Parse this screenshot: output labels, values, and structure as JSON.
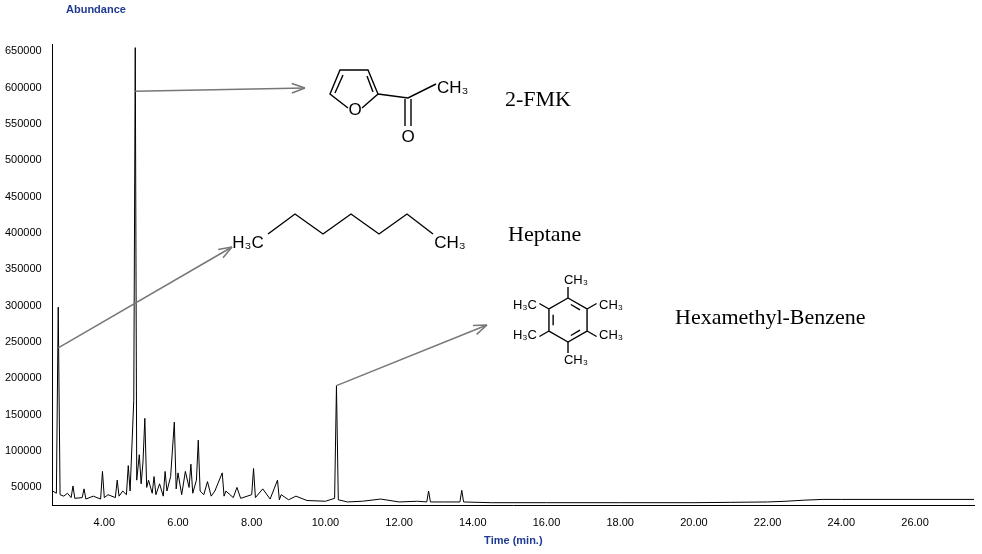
{
  "chart_data": {
    "type": "line",
    "xlabel": "Time (min.)",
    "ylabel": "Abundance",
    "color": "#000000",
    "grid": false,
    "xlim": [
      2.6,
      27.6
    ],
    "ylim": [
      25000,
      660000
    ],
    "xticks": [
      {
        "value": 4,
        "label": "4.00"
      },
      {
        "value": 6,
        "label": "6.00"
      },
      {
        "value": 8,
        "label": "8.00"
      },
      {
        "value": 10,
        "label": "10.00"
      },
      {
        "value": 12,
        "label": "12.00"
      },
      {
        "value": 14,
        "label": "14.00"
      },
      {
        "value": 16,
        "label": "16.00"
      },
      {
        "value": 18,
        "label": "18.00"
      },
      {
        "value": 20,
        "label": "20.00"
      },
      {
        "value": 22,
        "label": "22.00"
      },
      {
        "value": 24,
        "label": "24.00"
      },
      {
        "value": 26,
        "label": "26.00"
      }
    ],
    "yticks": [
      50000,
      100000,
      150000,
      200000,
      250000,
      300000,
      350000,
      400000,
      450000,
      500000,
      550000,
      600000,
      650000
    ],
    "x": [
      2.6,
      2.7,
      2.75,
      2.8,
      2.9,
      3.0,
      3.1,
      3.15,
      3.2,
      3.4,
      3.45,
      3.5,
      3.7,
      3.9,
      3.95,
      4.0,
      4.1,
      4.3,
      4.35,
      4.4,
      4.5,
      4.6,
      4.65,
      4.7,
      4.8,
      4.84,
      4.88,
      4.95,
      5.0,
      5.05,
      5.1,
      5.15,
      5.2,
      5.3,
      5.35,
      5.4,
      5.5,
      5.6,
      5.65,
      5.7,
      5.8,
      5.9,
      5.95,
      6.0,
      6.1,
      6.2,
      6.3,
      6.35,
      6.4,
      6.5,
      6.55,
      6.6,
      6.7,
      6.8,
      6.9,
      7.0,
      7.2,
      7.25,
      7.3,
      7.5,
      7.6,
      7.7,
      8.0,
      8.05,
      8.1,
      8.3,
      8.5,
      8.7,
      8.75,
      8.8,
      9.0,
      9.2,
      9.5,
      10.0,
      10.25,
      10.3,
      10.35,
      10.6,
      11.0,
      11.5,
      12.0,
      12.5,
      12.75,
      12.8,
      12.85,
      13.2,
      13.65,
      13.7,
      13.75,
      14.5,
      16.0,
      18.0,
      20.0,
      21.0,
      22.0,
      22.5,
      23.0,
      23.5,
      24.0,
      26.0,
      27.6
    ],
    "values": [
      45000,
      42000,
      298000,
      40000,
      38000,
      42000,
      36000,
      52000,
      35000,
      36000,
      48000,
      34000,
      38000,
      34000,
      72000,
      36000,
      40000,
      36000,
      60000,
      38000,
      45000,
      40000,
      80000,
      45000,
      170000,
      655000,
      60000,
      95000,
      55000,
      85000,
      145000,
      50000,
      60000,
      42000,
      65000,
      40000,
      55000,
      38000,
      72000,
      45000,
      65000,
      140000,
      48000,
      70000,
      40000,
      72000,
      50000,
      82000,
      42000,
      60000,
      115000,
      45000,
      40000,
      58000,
      38000,
      45000,
      70000,
      38000,
      45000,
      36000,
      50000,
      35000,
      40000,
      76000,
      36000,
      48000,
      34000,
      60000,
      33000,
      40000,
      33000,
      38000,
      32000,
      31000,
      35000,
      190000,
      33000,
      30000,
      31000,
      34000,
      30000,
      31000,
      30000,
      45000,
      30000,
      30000,
      30000,
      46000,
      30000,
      29000,
      29000,
      29000,
      29000,
      29500,
      30000,
      31000,
      32500,
      33500,
      33500,
      33500,
      33500
    ],
    "annotations": [
      {
        "text": "2-FMK",
        "x": 4.84,
        "y": 595000,
        "atoms": [
          "O",
          "CH₃",
          "O"
        ]
      },
      {
        "text": "Heptane",
        "x": 2.75,
        "y": 242000,
        "atoms": [
          "H₃C",
          "CH₃"
        ]
      },
      {
        "text": "Hexamethyl-Benzene",
        "x": 10.3,
        "y": 190000,
        "atoms": [
          "CH₃",
          "H₃C",
          "CH₃",
          "H₃C",
          "CH₃",
          "CH₃"
        ]
      }
    ]
  }
}
